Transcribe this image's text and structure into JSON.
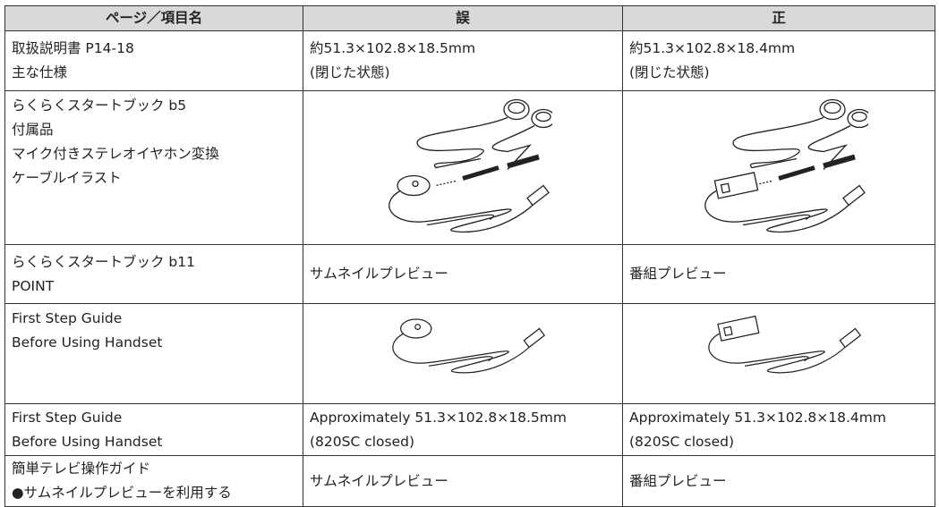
{
  "table": {
    "header": [
      "ページ／項目名",
      "誤",
      "正"
    ],
    "rows": [
      [
        [
          "取扱説明書 P14-18",
          "主な仕様"
        ],
        [
          "約51.3×102.8×18.5mm",
          "(閉じた状態)"
        ],
        [
          "約51.3×102.8×18.4mm",
          "(閉じた状態)"
        ]
      ],
      [
        [
          "らくらくスタートブック b5",
          "付属品",
          "マイク付きステレオイヤホン変換",
          "ケーブルイラスト"
        ]
      ],
      [
        [
          "らくらくスタートブック b11",
          "POINT"
        ],
        [
          "サムネイルプレビュー"
        ],
        [
          "番組プレビュー"
        ]
      ],
      [
        [
          "First Step Guide",
          "Before Using Handset"
        ]
      ],
      [
        [
          "First Step Guide",
          "Before Using Handset"
        ],
        [
          "Approximately 51.3×102.8×18.5mm",
          "(820SC closed)"
        ],
        [
          "Approximately 51.3×102.8×18.4mm",
          "(820SC closed)"
        ]
      ],
      [
        [
          "簡単テレビ操作ガイド",
          "●サムネイルプレビューを利用する"
        ],
        [
          "サムネイルプレビュー"
        ],
        [
          "番組プレビュー"
        ]
      ]
    ]
  }
}
